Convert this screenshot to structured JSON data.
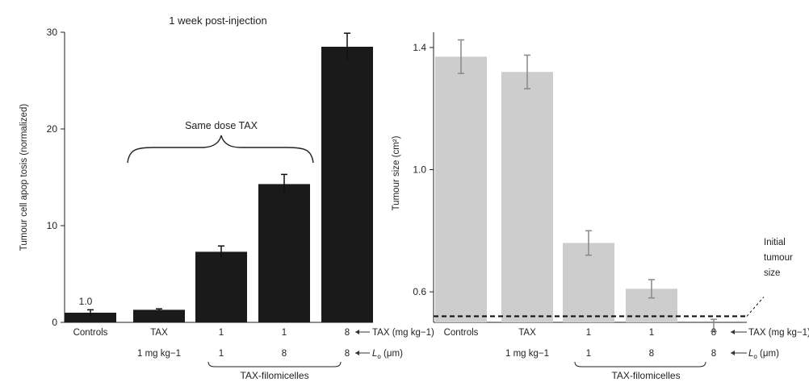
{
  "chart_data": [
    {
      "type": "bar",
      "title": "1 week post-injection",
      "ylabel": "Tumour cell apop tosis (normalized)",
      "ylim": [
        0,
        30
      ],
      "yticks": [
        "0",
        "10",
        "20",
        "30"
      ],
      "bar_color": "#1a1a1a",
      "categories": [
        "Controls",
        "TAX 1 mg kg−1",
        "1 / 1",
        "1 / 8",
        "8 / 8"
      ],
      "values": [
        1.0,
        1.3,
        7.3,
        14.3,
        28.5
      ],
      "error": [
        0.3,
        0.1,
        0.6,
        1.0,
        1.4
      ],
      "value_label": "1.0",
      "annotation": "Same dose TAX",
      "x_rows": {
        "row1": [
          "Controls",
          "TAX",
          "1",
          "1",
          "8"
        ],
        "row1_sub": [
          "",
          "1 mg kg−1",
          "",
          "",
          ""
        ],
        "row2": [
          "",
          "",
          "1",
          "8",
          "8"
        ],
        "row1_key": "TAX (mg kg−1)",
        "row2_key_symbol": "L",
        "row2_key_sub": "o",
        "row2_key_unit": " (μm)"
      },
      "group_label": "TAX-filomicelles"
    },
    {
      "type": "bar",
      "ylabel": "Tumour size (cm²)",
      "ylim": [
        0.5,
        1.45
      ],
      "yticks": [
        "0.6",
        "1.0",
        "1.4"
      ],
      "bar_color": "#cdcdcd",
      "categories": [
        "Controls",
        "TAX 1 mg kg−1",
        "1 / 1",
        "1 / 8",
        "8 / 8"
      ],
      "values": [
        1.37,
        1.32,
        0.76,
        0.61,
        0.49
      ],
      "error": [
        0.055,
        0.055,
        0.04,
        0.03,
        0.02
      ],
      "reference_line": {
        "value": 0.52,
        "label": [
          "Initial",
          "tumour",
          "size"
        ]
      },
      "x_rows": {
        "row1": [
          "Controls",
          "TAX",
          "1",
          "1",
          "8"
        ],
        "row1_sub": [
          "",
          "1 mg kg−1",
          "",
          "",
          ""
        ],
        "row2": [
          "",
          "",
          "1",
          "8",
          "8"
        ],
        "row1_key": "TAX (mg kg−1)",
        "row2_key_symbol": "L",
        "row2_key_sub": "o",
        "row2_key_unit": " (μm)"
      },
      "group_label": "TAX-filomicelles"
    }
  ]
}
